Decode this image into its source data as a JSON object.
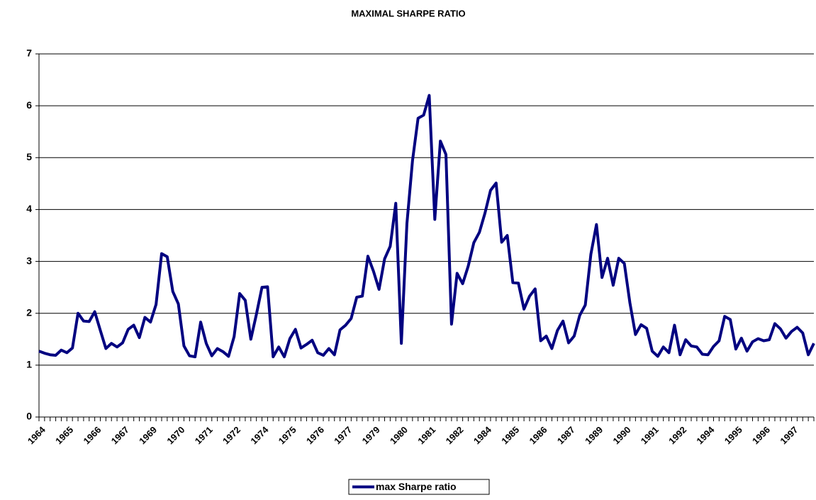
{
  "chart_data": {
    "type": "line",
    "title": "MAXIMAL SHARPE RATIO",
    "categories": [
      "1964",
      null,
      null,
      null,
      null,
      "1965",
      null,
      null,
      null,
      null,
      "1966",
      null,
      null,
      null,
      null,
      "1967",
      null,
      null,
      null,
      null,
      "1969",
      null,
      null,
      null,
      null,
      "1970",
      null,
      null,
      null,
      null,
      "1971",
      null,
      null,
      null,
      null,
      "1972",
      null,
      null,
      null,
      null,
      "1974",
      null,
      null,
      null,
      null,
      "1975",
      null,
      null,
      null,
      null,
      "1976",
      null,
      null,
      null,
      null,
      "1977",
      null,
      null,
      null,
      null,
      "1979",
      null,
      null,
      null,
      null,
      "1980",
      null,
      null,
      null,
      null,
      "1981",
      null,
      null,
      null,
      null,
      "1982",
      null,
      null,
      null,
      null,
      "1984",
      null,
      null,
      null,
      null,
      "1985",
      null,
      null,
      null,
      null,
      "1986",
      null,
      null,
      null,
      null,
      "1987",
      null,
      null,
      null,
      null,
      "1989",
      null,
      null,
      null,
      null,
      "1990",
      null,
      null,
      null,
      null,
      "1991",
      null,
      null,
      null,
      null,
      "1992",
      null,
      null,
      null,
      null,
      "1994",
      null,
      null,
      null,
      null,
      "1995",
      null,
      null,
      null,
      null,
      "1996",
      null,
      null,
      null,
      null,
      "1997",
      null,
      null,
      null,
      null
    ],
    "series": [
      {
        "name": "max Sharpe ratio",
        "color": "#000080",
        "values": [
          1.27,
          1.23,
          1.2,
          1.19,
          1.29,
          1.24,
          1.33,
          2.0,
          1.85,
          1.84,
          2.03,
          1.67,
          1.32,
          1.42,
          1.35,
          1.43,
          1.69,
          1.77,
          1.53,
          1.92,
          1.83,
          2.17,
          3.15,
          3.09,
          2.42,
          2.18,
          1.37,
          1.18,
          1.16,
          1.83,
          1.42,
          1.18,
          1.32,
          1.26,
          1.17,
          1.55,
          2.38,
          2.25,
          1.5,
          1.98,
          2.5,
          2.51,
          1.16,
          1.35,
          1.16,
          1.51,
          1.69,
          1.33,
          1.4,
          1.48,
          1.24,
          1.19,
          1.32,
          1.2,
          1.68,
          1.77,
          1.9,
          2.31,
          2.33,
          3.1,
          2.81,
          2.46,
          3.05,
          3.29,
          4.12,
          1.42,
          3.73,
          4.94,
          5.76,
          5.82,
          6.2,
          3.81,
          5.32,
          5.06,
          1.79,
          2.77,
          2.57,
          2.91,
          3.36,
          3.56,
          3.93,
          4.37,
          4.51,
          3.37,
          3.5,
          2.59,
          2.58,
          2.08,
          2.33,
          2.47,
          1.47,
          1.56,
          1.32,
          1.67,
          1.85,
          1.43,
          1.56,
          1.96,
          2.16,
          3.14,
          3.71,
          2.69,
          3.06,
          2.54,
          3.06,
          2.96,
          2.2,
          1.59,
          1.78,
          1.71,
          1.27,
          1.17,
          1.35,
          1.24,
          1.77,
          1.2,
          1.49,
          1.37,
          1.35,
          1.21,
          1.2,
          1.36,
          1.47,
          1.94,
          1.88,
          1.31,
          1.52,
          1.27,
          1.45,
          1.51,
          1.47,
          1.49,
          1.8,
          1.7,
          1.52,
          1.65,
          1.73,
          1.62,
          1.2,
          1.42
        ]
      }
    ],
    "ylim": [
      0,
      7
    ],
    "yticks": [
      0,
      1,
      2,
      3,
      4,
      5,
      6,
      7
    ],
    "grid": true,
    "legend": "bottom"
  }
}
